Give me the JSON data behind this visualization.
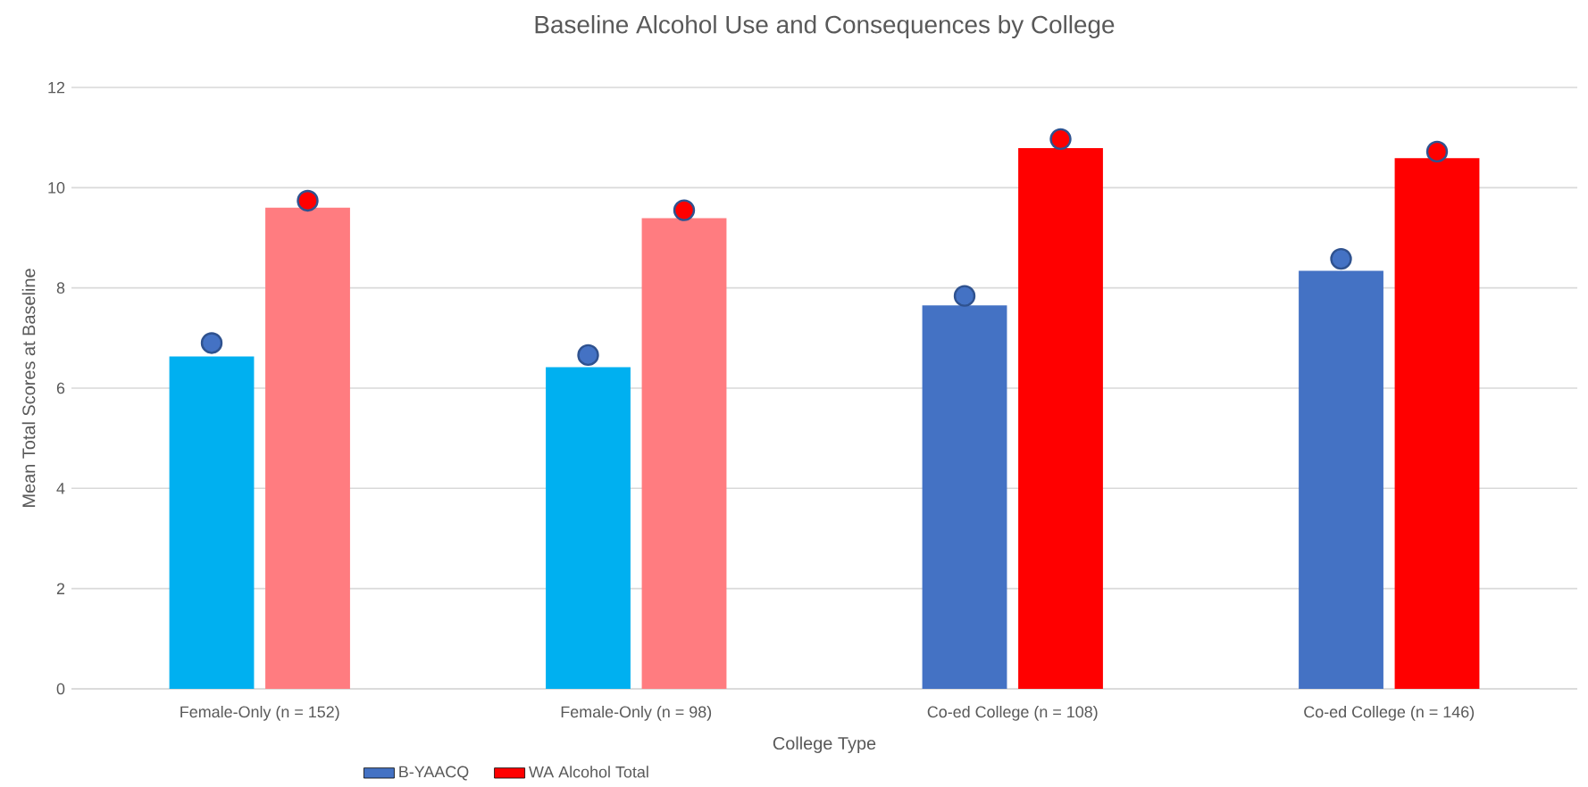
{
  "chart_data": {
    "type": "bar",
    "title": "Baseline Alcohol Use and Consequences by College",
    "xlabel": "College Type",
    "ylabel": "Mean Total Scores at Baseline",
    "categories": [
      "Female-Only (n = 152)",
      "Female-Only (n = 98)",
      "Co-ed College (n = 108)",
      "Co-ed College (n = 146)"
    ],
    "series": [
      {
        "name": "B-YAACQ",
        "color": "#4472c4",
        "colors": [
          "#00b0f0",
          "#00b0f0",
          "#4472c4",
          "#4472c4"
        ],
        "values": [
          6.63,
          6.42,
          7.65,
          8.34
        ]
      },
      {
        "name": "WA Alcohol Total",
        "color": "#ff0000",
        "colors": [
          "#ff7c80",
          "#ff7c80",
          "#ff0000",
          "#ff0000"
        ],
        "values": [
          9.6,
          9.39,
          10.79,
          10.59
        ]
      },
      {
        "type": "scatter",
        "marker": "circle",
        "color": "#4472c4",
        "x": [
          "Female-Only (n = 152)",
          "Female-Only (n = 98)",
          "Co-ed College (n = 108)",
          "Co-ed College (n = 146)"
        ],
        "values": [
          6.9,
          6.66,
          7.84,
          8.58
        ]
      },
      {
        "type": "scatter",
        "marker": "circle",
        "color": "#ff0000",
        "x": [
          "Female-Only (n = 152)",
          "Female-Only (n = 98)",
          "Co-ed College (n = 108)",
          "Co-ed College (n = 146)"
        ],
        "values": [
          9.74,
          9.55,
          10.97,
          10.72
        ]
      }
    ],
    "ylim": [
      0,
      12
    ],
    "yticks": [
      0,
      2,
      4,
      6,
      8,
      10,
      12
    ],
    "grid": "y",
    "legend": "bottom"
  }
}
